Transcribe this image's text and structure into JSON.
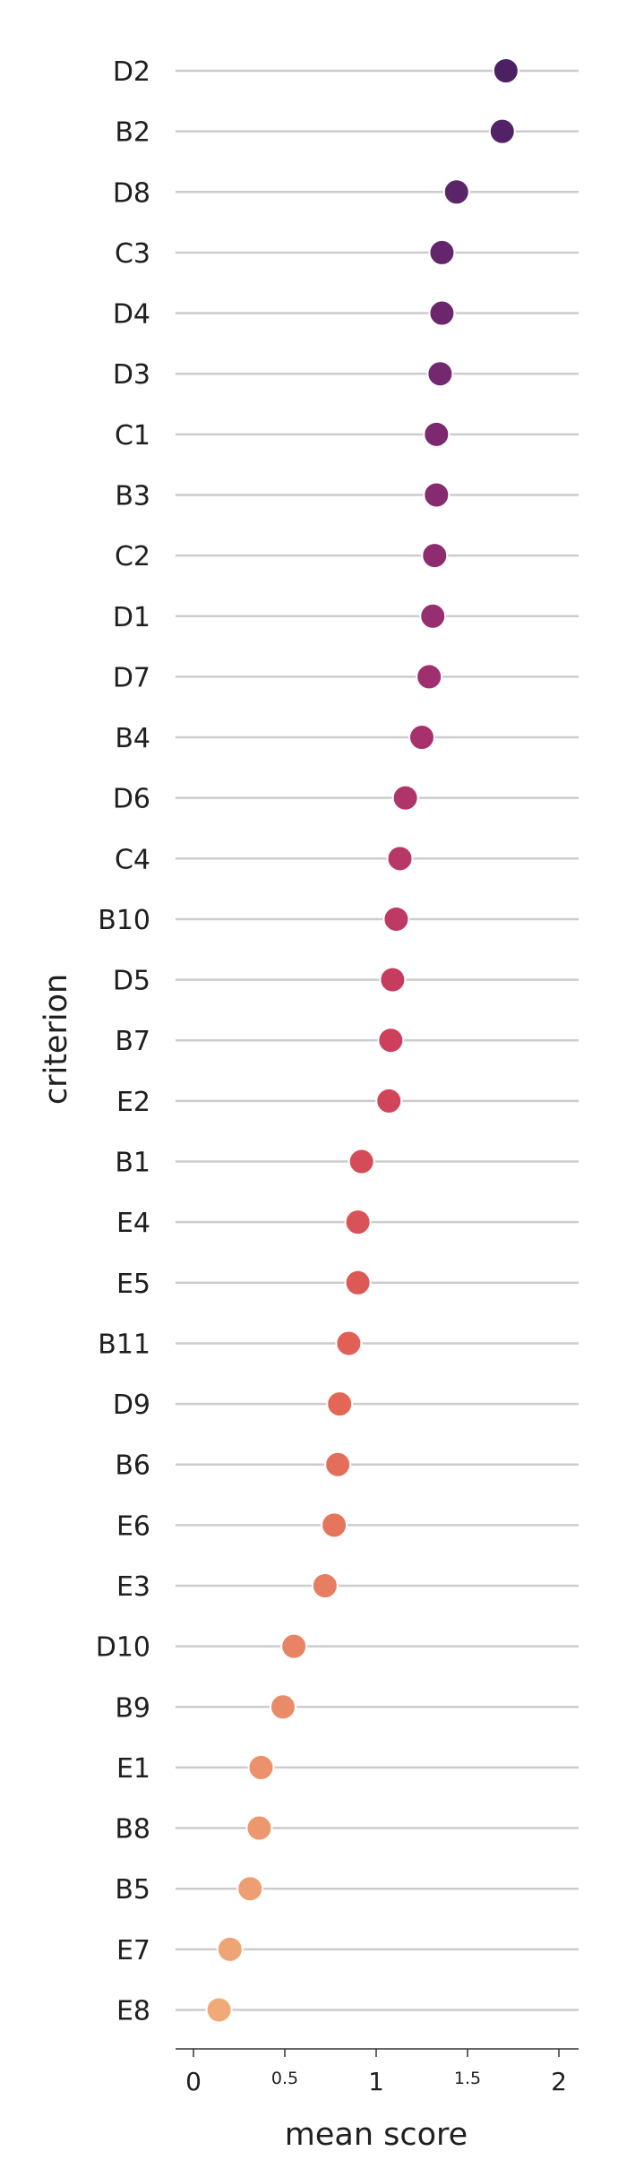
{
  "chart_data": {
    "type": "scatter",
    "orientation": "horizontal-dot",
    "xlabel": "mean score",
    "ylabel": "criterion",
    "xlim": [
      -0.1,
      2.1
    ],
    "x_ticks": [
      {
        "value": 0,
        "label": "0",
        "style": "major"
      },
      {
        "value": 0.5,
        "label": "0.5",
        "style": "minor"
      },
      {
        "value": 1,
        "label": "1",
        "style": "major"
      },
      {
        "value": 1.5,
        "label": "1.5",
        "style": "minor"
      },
      {
        "value": 2,
        "label": "2",
        "style": "major"
      }
    ],
    "grid": "horizontal lines per category",
    "colormap": "flare (dark purple at top to light orange at bottom)",
    "categories": [
      "D2",
      "B2",
      "D8",
      "C3",
      "D4",
      "D3",
      "C1",
      "B3",
      "C2",
      "D1",
      "D7",
      "B4",
      "D6",
      "C4",
      "B10",
      "D5",
      "B7",
      "E2",
      "B1",
      "E4",
      "E5",
      "B11",
      "D9",
      "B6",
      "E6",
      "E3",
      "D10",
      "B9",
      "E1",
      "B8",
      "B5",
      "E7",
      "E8"
    ],
    "values": [
      1.71,
      1.69,
      1.44,
      1.36,
      1.36,
      1.35,
      1.33,
      1.33,
      1.32,
      1.31,
      1.29,
      1.25,
      1.16,
      1.13,
      1.11,
      1.09,
      1.08,
      1.07,
      0.92,
      0.9,
      0.9,
      0.85,
      0.8,
      0.79,
      0.77,
      0.72,
      0.55,
      0.49,
      0.37,
      0.36,
      0.31,
      0.2,
      0.14
    ]
  }
}
